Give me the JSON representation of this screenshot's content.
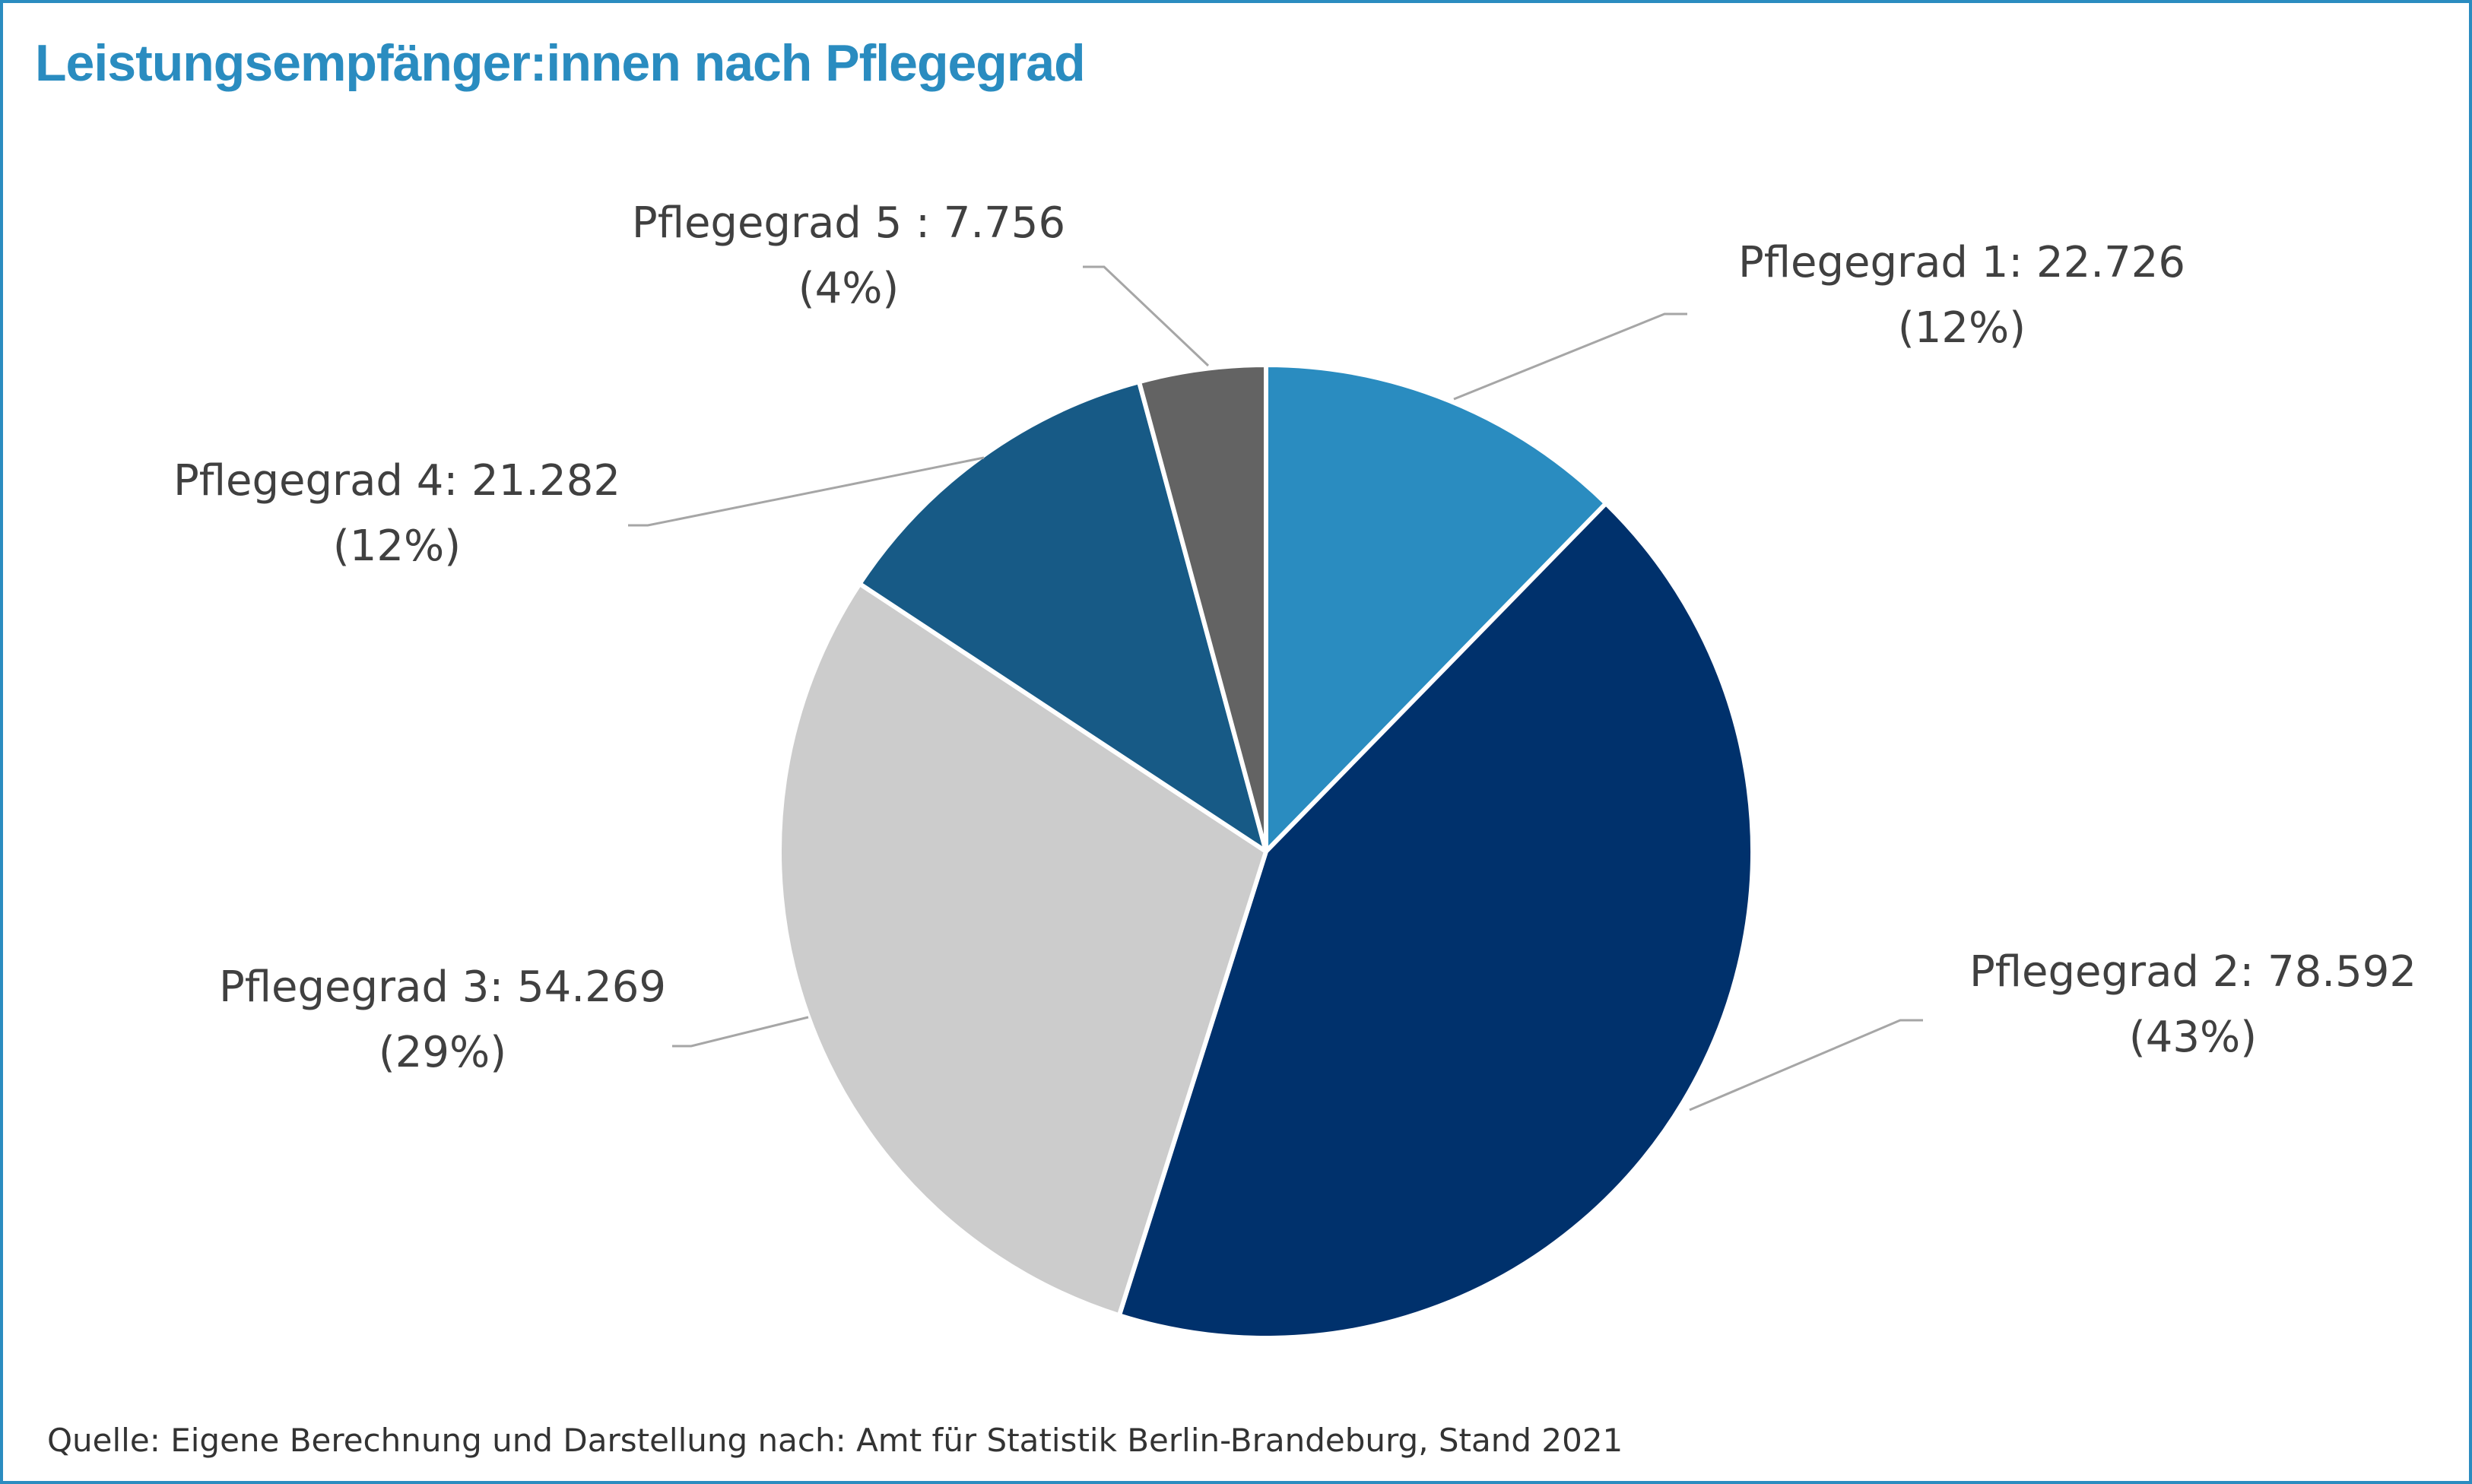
{
  "chart_data": {
    "type": "pie",
    "title": "Leistungsempfänger:innen nach Pflegegrad",
    "source": "Quelle: Eigene Berechnung und Darstellung nach: Amt für Statistik Berlin-Brandeburg, Stand 2021",
    "slices": [
      {
        "label": "Pflegegrad 1: 22.726",
        "percent_label": "(12%)",
        "value": 22726,
        "color": "#2a8cc0"
      },
      {
        "label": "Pflegegrad 2: 78.592",
        "percent_label": "(43%)",
        "value": 78592,
        "color": "#00316c"
      },
      {
        "label": "Pflegegrad 3: 54.269",
        "percent_label": "(29%)",
        "value": 54269,
        "color": "#cccccc"
      },
      {
        "label": "Pflegegrad 4: 21.282",
        "percent_label": "(12%)",
        "value": 21282,
        "color": "#175a86"
      },
      {
        "label": "Pflegegrad 5 : 7.756",
        "percent_label": "(4%)",
        "value": 7756,
        "color": "#636363"
      }
    ],
    "start_angle": "12 o'clock",
    "direction": "clockwise",
    "legend": "none",
    "frame_color": "#2a8cc0",
    "title_color": "#2a8cc0",
    "leader_line_color": "#a6a6a6"
  }
}
